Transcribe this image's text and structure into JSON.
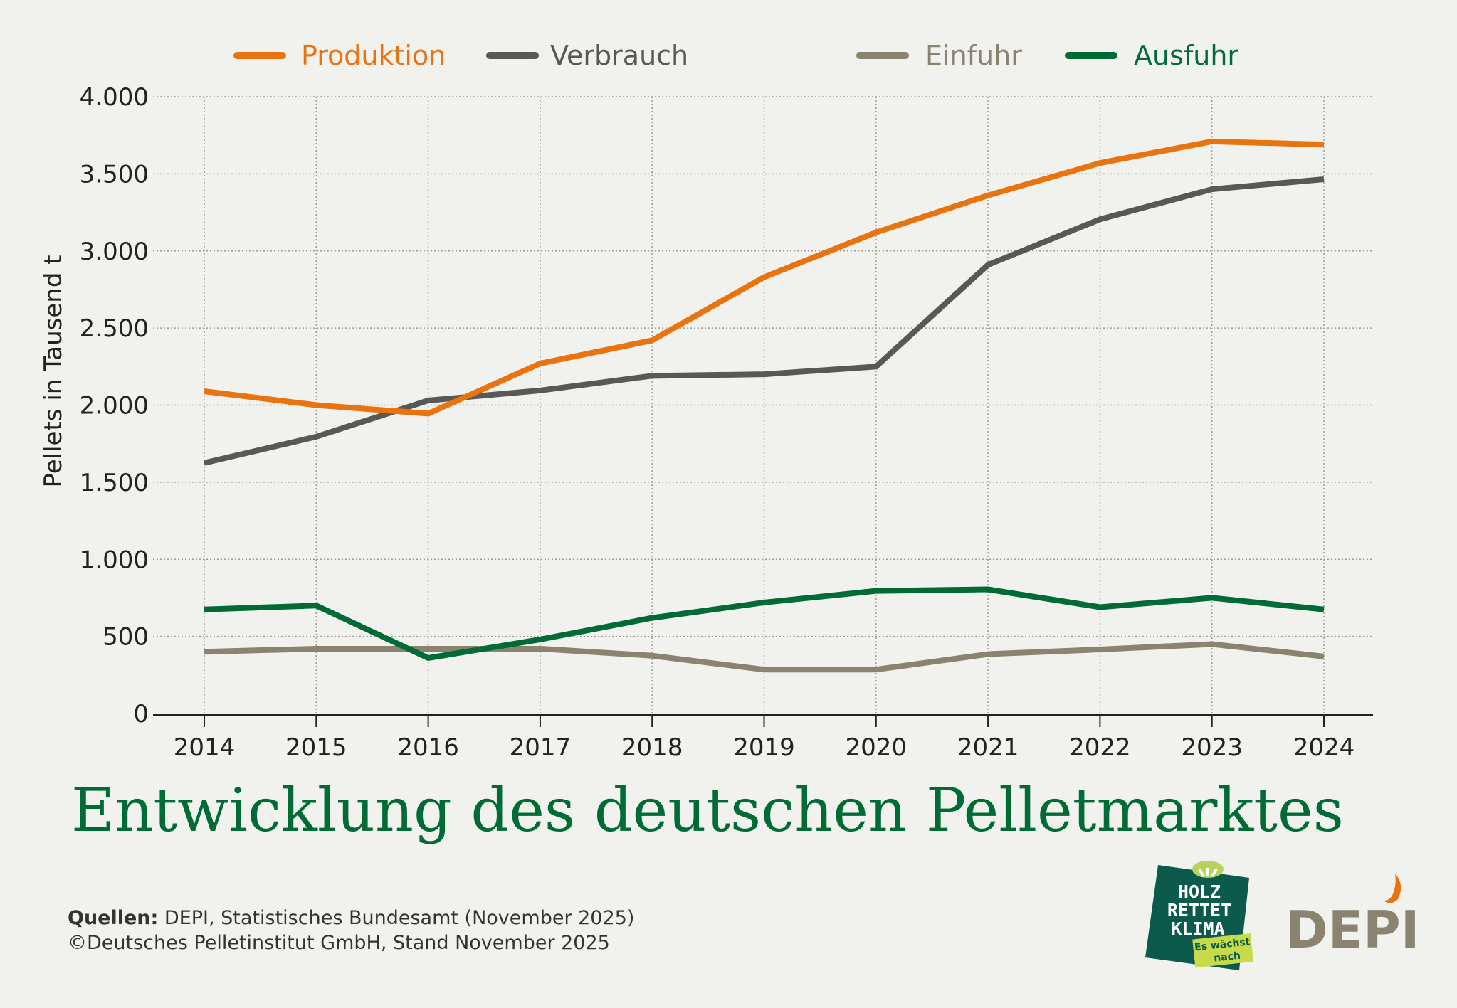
{
  "chart_data": {
    "type": "line",
    "title": "Entwicklung des deutschen Pelletmarktes",
    "xlabel": "",
    "ylabel": "Pellets in Tausend t",
    "ylim": [
      0,
      4000
    ],
    "yticks": [
      0,
      500,
      1000,
      1500,
      2000,
      2500,
      3000,
      3500,
      4000
    ],
    "ytick_labels": [
      "0",
      "500",
      "1.000",
      "1.500",
      "2.000",
      "2.500",
      "3.000",
      "3.500",
      "4.000"
    ],
    "categories": [
      "2014",
      "2015",
      "2016",
      "2017",
      "2018",
      "2019",
      "2020",
      "2021",
      "2022",
      "2023",
      "2024"
    ],
    "grid": true,
    "legend_position": "top",
    "series": [
      {
        "name": "Produktion",
        "color": "#E8730F",
        "values": [
          2090,
          2000,
          1945,
          2270,
          2420,
          2830,
          3120,
          3360,
          3570,
          3710,
          3690
        ]
      },
      {
        "name": "Verbrauch",
        "color": "#585858",
        "values": [
          1625,
          1795,
          2030,
          2095,
          2190,
          2200,
          2250,
          2910,
          3205,
          3400,
          3465
        ]
      },
      {
        "name": "Einfuhr",
        "color": "#8A8370",
        "values": [
          400,
          420,
          420,
          420,
          375,
          285,
          285,
          385,
          415,
          450,
          370
        ]
      },
      {
        "name": "Ausfuhr",
        "color": "#006B35",
        "values": [
          675,
          700,
          360,
          480,
          620,
          720,
          795,
          805,
          690,
          750,
          675
        ]
      }
    ]
  },
  "footer": {
    "source_label": "Quellen:",
    "source_text": " DEPI, Statistisches Bundesamt (November 2025)",
    "copyright": "©Deutsches Pelletinstitut GmbH, Stand November 2025"
  },
  "logos": {
    "hrk": [
      "HOLZ",
      "RETTET",
      "KLIMA",
      "Es wächst",
      "nach"
    ],
    "depi": "DEPI"
  }
}
